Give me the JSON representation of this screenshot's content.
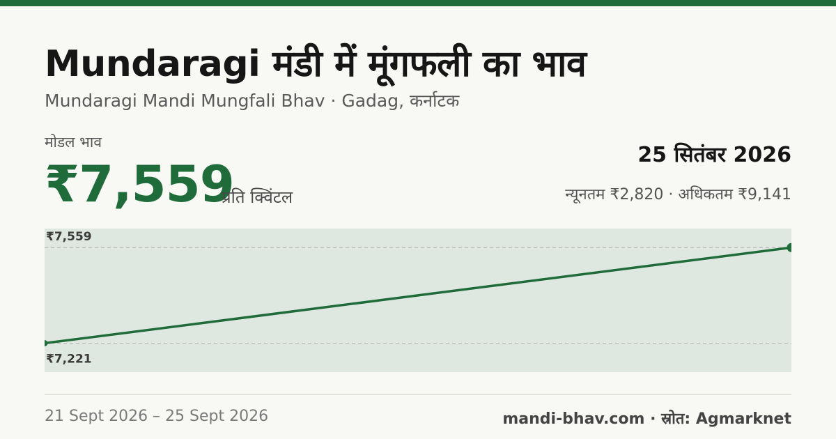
{
  "header": {
    "title": "Mundaragi मंडी में मूंगफली का भाव",
    "subtitle": "Mundaragi Mandi Mungfali Bhav · Gadag, कर्नाटक"
  },
  "price": {
    "modal_label": "मोडल भाव",
    "modal_value": "₹7,559",
    "unit": "प्रति क्विंटल",
    "date": "25 सितंबर 2026",
    "min_max": "न्यूनतम ₹2,820 · अधिकतम ₹9,141"
  },
  "chart_data": {
    "type": "line",
    "title": "",
    "xlabel": "",
    "ylabel": "",
    "x": [
      "21 Sept 2026",
      "25 Sept 2026"
    ],
    "series": [
      {
        "values": [
          7221,
          7559
        ]
      }
    ],
    "reference_labels": [
      "₹7,559",
      "₹7,221"
    ],
    "ylim": [
      7119,
      7626
    ],
    "grid": false,
    "colors": {
      "line": "#1f6b3a",
      "background": "#dfe8e0",
      "guide": "#b0b0b0"
    }
  },
  "footer": {
    "period": "21 Sept 2026 – 25 Sept 2026",
    "source": "mandi-bhav.com · स्रोत: Agmarknet"
  }
}
